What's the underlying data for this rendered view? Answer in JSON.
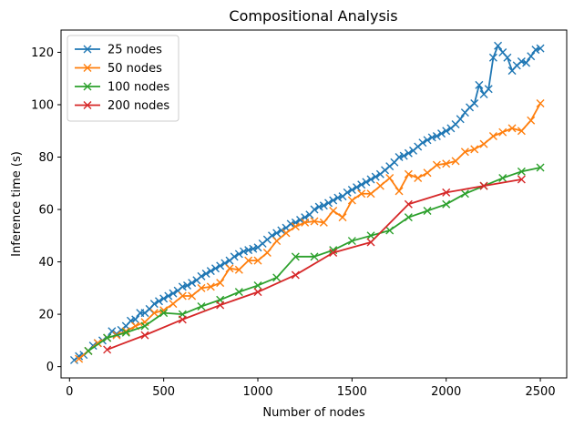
{
  "chart_data": {
    "type": "line",
    "title": "Compositional Analysis",
    "xlabel": "Number of nodes",
    "ylabel": "Inference time (s)",
    "xlim": [
      -45,
      2640
    ],
    "ylim": [
      -4.3,
      128.5
    ],
    "xticks": [
      0,
      500,
      1000,
      1500,
      2000,
      2500
    ],
    "yticks": [
      0,
      20,
      40,
      60,
      80,
      100,
      120
    ],
    "grid": false,
    "legend": "top-left",
    "marker": "x",
    "series": [
      {
        "name": "25 nodes",
        "color": "#1f77b4",
        "x": [
          25,
          50,
          75,
          100,
          125,
          150,
          175,
          200,
          225,
          250,
          275,
          300,
          325,
          350,
          375,
          400,
          425,
          450,
          475,
          500,
          525,
          550,
          575,
          600,
          625,
          650,
          675,
          700,
          725,
          750,
          775,
          800,
          825,
          850,
          875,
          900,
          925,
          950,
          975,
          1000,
          1025,
          1050,
          1075,
          1100,
          1125,
          1150,
          1175,
          1200,
          1225,
          1250,
          1275,
          1300,
          1325,
          1350,
          1375,
          1400,
          1425,
          1450,
          1475,
          1500,
          1525,
          1550,
          1575,
          1600,
          1625,
          1650,
          1675,
          1700,
          1725,
          1750,
          1775,
          1800,
          1825,
          1850,
          1875,
          1900,
          1925,
          1950,
          1975,
          2000,
          2025,
          2050,
          2075,
          2100,
          2125,
          2150,
          2175,
          2200,
          2225,
          2250,
          2275,
          2300,
          2325,
          2350,
          2375,
          2400,
          2425,
          2450,
          2475,
          2500
        ],
        "values": [
          2.5,
          4,
          4.5,
          6,
          8,
          9,
          10,
          11,
          13.5,
          12.5,
          14,
          15.5,
          17.5,
          18,
          20.5,
          20.5,
          22,
          24,
          25,
          26,
          27,
          28,
          29,
          30.5,
          31,
          32,
          33,
          34.5,
          35.5,
          36.5,
          37.5,
          38.5,
          39.5,
          40.5,
          42,
          43,
          44,
          44.5,
          45,
          45.5,
          47,
          48.5,
          50,
          51,
          52,
          53,
          54.5,
          55,
          56,
          57,
          58,
          60,
          61,
          61.5,
          62.5,
          63.5,
          64.5,
          65,
          66.5,
          67.5,
          68.5,
          69.5,
          70.5,
          71.5,
          72.5,
          73.5,
          75,
          76.5,
          78,
          80,
          80.5,
          81.5,
          82.5,
          84,
          85.5,
          86.5,
          87.5,
          88,
          89,
          90,
          91,
          92.5,
          94.5,
          97,
          99,
          100.5,
          107.5,
          104,
          106,
          118,
          122.5,
          120,
          118,
          113,
          115,
          116.5,
          116,
          118.5,
          121,
          121.5
        ]
      },
      {
        "name": "50 nodes",
        "color": "#ff7f0e",
        "x": [
          50,
          100,
          150,
          200,
          250,
          300,
          350,
          400,
          450,
          500,
          550,
          600,
          650,
          700,
          750,
          800,
          850,
          900,
          950,
          1000,
          1050,
          1100,
          1150,
          1200,
          1250,
          1300,
          1350,
          1400,
          1450,
          1500,
          1550,
          1600,
          1650,
          1700,
          1750,
          1800,
          1850,
          1900,
          1950,
          2000,
          2050,
          2100,
          2150,
          2200,
          2250,
          2300,
          2350,
          2400,
          2450,
          2500
        ],
        "values": [
          3,
          6,
          9,
          11,
          12,
          13.5,
          15.5,
          17,
          20.5,
          21.5,
          24,
          27,
          27,
          30,
          30.5,
          32,
          37.5,
          37,
          40.5,
          40.5,
          43.5,
          48,
          51,
          53.5,
          55,
          55.5,
          55,
          59.5,
          57,
          63.5,
          66,
          66,
          69,
          72,
          67,
          73.5,
          72,
          74,
          77,
          77.5,
          78.5,
          82,
          83,
          85,
          88,
          89.5,
          91,
          90,
          94,
          100.5
        ]
      },
      {
        "name": "100 nodes",
        "color": "#2ca02c",
        "x": [
          100,
          200,
          300,
          400,
          500,
          600,
          700,
          800,
          900,
          1000,
          1100,
          1200,
          1300,
          1400,
          1500,
          1600,
          1700,
          1800,
          1900,
          2000,
          2100,
          2200,
          2300,
          2400,
          2500
        ],
        "values": [
          6,
          11,
          13,
          15.5,
          20.5,
          20,
          23,
          25.5,
          28.5,
          31,
          34,
          42,
          42,
          44.5,
          48,
          50,
          52,
          57,
          59.5,
          62,
          66,
          69,
          72,
          74.5,
          76
        ]
      },
      {
        "name": "200 nodes",
        "color": "#d62728",
        "x": [
          200,
          400,
          600,
          800,
          1000,
          1200,
          1400,
          1600,
          1800,
          2000,
          2200,
          2400
        ],
        "values": [
          6.5,
          12,
          18,
          23.5,
          28.5,
          35,
          43.5,
          47.5,
          62,
          66.5,
          69,
          71.5
        ]
      }
    ]
  }
}
